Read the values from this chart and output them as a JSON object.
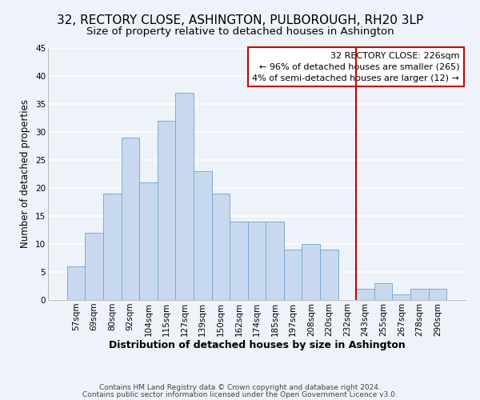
{
  "title": "32, RECTORY CLOSE, ASHINGTON, PULBOROUGH, RH20 3LP",
  "subtitle": "Size of property relative to detached houses in Ashington",
  "xlabel": "Distribution of detached houses by size in Ashington",
  "ylabel": "Number of detached properties",
  "bar_labels": [
    "57sqm",
    "69sqm",
    "80sqm",
    "92sqm",
    "104sqm",
    "115sqm",
    "127sqm",
    "139sqm",
    "150sqm",
    "162sqm",
    "174sqm",
    "185sqm",
    "197sqm",
    "208sqm",
    "220sqm",
    "232sqm",
    "243sqm",
    "255sqm",
    "267sqm",
    "278sqm",
    "290sqm"
  ],
  "bar_heights": [
    6,
    12,
    19,
    29,
    21,
    32,
    37,
    23,
    19,
    14,
    14,
    14,
    9,
    10,
    9,
    0,
    2,
    3,
    1,
    2,
    2
  ],
  "bar_color": "#c8d9ef",
  "bar_edge_color": "#7baad4",
  "ylim": [
    0,
    45
  ],
  "yticks": [
    0,
    5,
    10,
    15,
    20,
    25,
    30,
    35,
    40,
    45
  ],
  "vline_x": 15.5,
  "vline_color": "#cc0000",
  "annotation_title": "32 RECTORY CLOSE: 226sqm",
  "annotation_line1": "← 96% of detached houses are smaller (265)",
  "annotation_line2": "4% of semi-detached houses are larger (12) →",
  "annotation_box_facecolor": "#ffffff",
  "annotation_box_edgecolor": "#cc0000",
  "footer_line1": "Contains HM Land Registry data © Crown copyright and database right 2024.",
  "footer_line2": "Contains public sector information licensed under the Open Government Licence v3.0.",
  "background_color": "#eef2f9",
  "plot_bg_color": "#eef2f9",
  "grid_color": "#ffffff",
  "title_fontsize": 11,
  "subtitle_fontsize": 9.5,
  "xlabel_fontsize": 9,
  "ylabel_fontsize": 8.5,
  "tick_fontsize": 7.5,
  "annotation_fontsize": 8,
  "footer_fontsize": 6.5
}
